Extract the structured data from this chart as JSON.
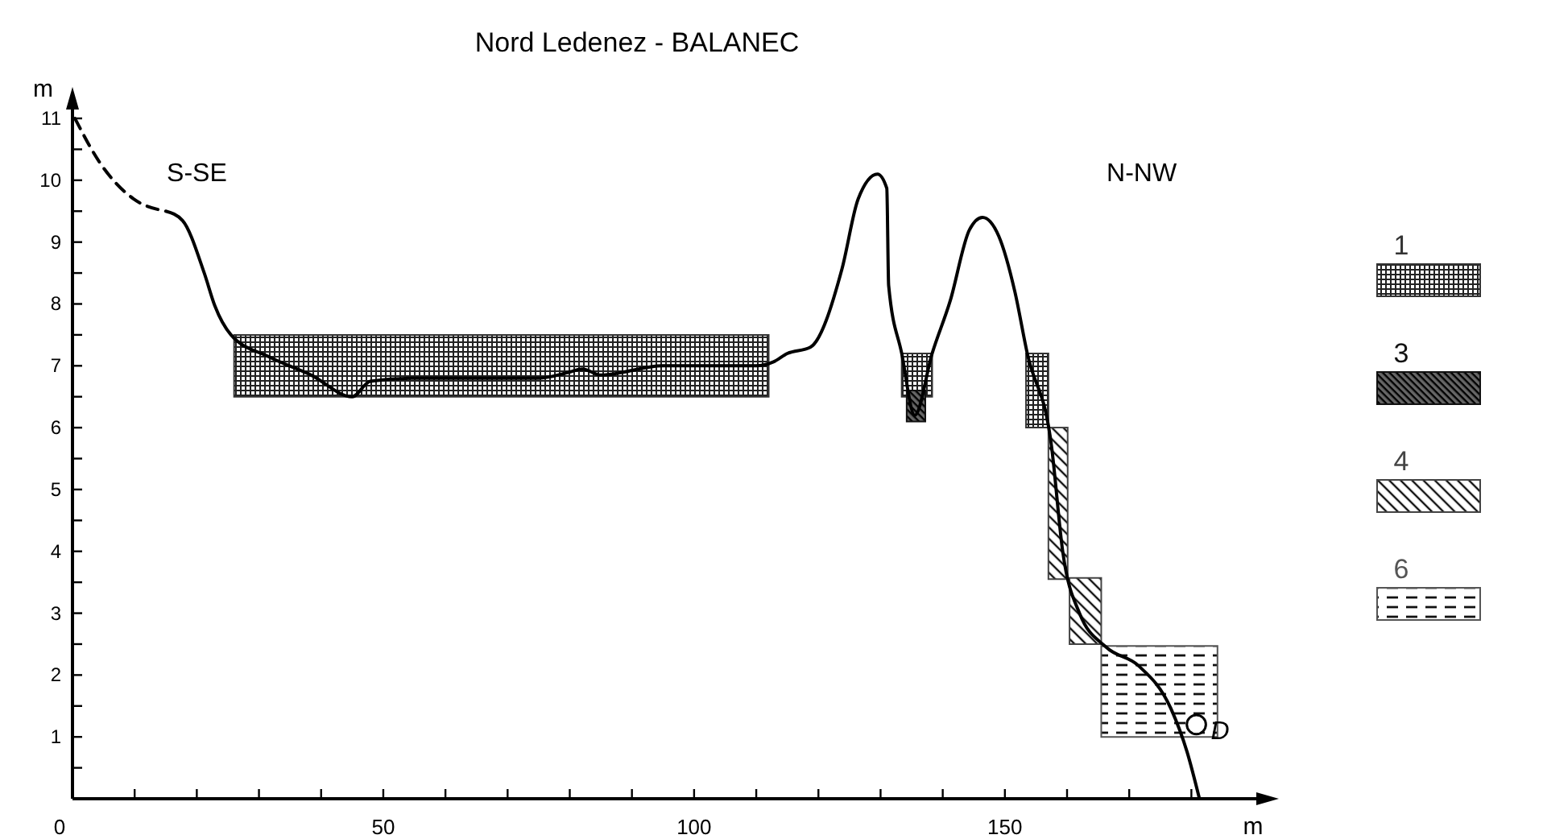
{
  "chart_data": {
    "type": "line",
    "title": "Nord Ledenez - BALANEC",
    "xlabel": "m",
    "ylabel": "m",
    "xlim": [
      0,
      192
    ],
    "ylim": [
      0,
      11.3
    ],
    "xticks": [
      0,
      {
        "value": 10,
        "label": null
      },
      {
        "value": 20,
        "label": null
      },
      {
        "value": 30,
        "label": null
      },
      {
        "value": 40,
        "label": null
      },
      50,
      {
        "value": 60,
        "label": null
      },
      {
        "value": 70,
        "label": null
      },
      {
        "value": 80,
        "label": null
      },
      {
        "value": 90,
        "label": null
      },
      100,
      {
        "value": 110,
        "label": null
      },
      {
        "value": 120,
        "label": null
      },
      {
        "value": 130,
        "label": null
      },
      {
        "value": 140,
        "label": null
      },
      150,
      {
        "value": 160,
        "label": null
      },
      {
        "value": 170,
        "label": null
      },
      {
        "value": 180,
        "label": null
      }
    ],
    "yticks": [
      {
        "value": 0.5,
        "label": null
      },
      1,
      {
        "value": 1.5,
        "label": null
      },
      2,
      {
        "value": 2.5,
        "label": null
      },
      3,
      {
        "value": 3.5,
        "label": null
      },
      4,
      {
        "value": 4.5,
        "label": null
      },
      5,
      {
        "value": 5.5,
        "label": null
      },
      6,
      {
        "value": 6.5,
        "label": null
      },
      7,
      {
        "value": 7.5,
        "label": null
      },
      8,
      {
        "value": 8.5,
        "label": null
      },
      9,
      {
        "value": 9.5,
        "label": null
      },
      10,
      {
        "value": 10.5,
        "label": null
      },
      11
    ],
    "grid": false,
    "legend": "right",
    "series": [
      {
        "type": "area",
        "name": "1",
        "color": "#333333",
        "x": [
          26,
          26,
          112,
          112
        ],
        "values": [
          6.5,
          7.5,
          7.5,
          6.5
        ]
      },
      {
        "type": "area",
        "color": "#333333",
        "x": [
          133.4,
          133.4,
          138.3,
          138.3
        ],
        "values": [
          6.5,
          7.2,
          7.2,
          6.5
        ]
      },
      {
        "type": "area",
        "name": "3",
        "color": "#111111",
        "x": [
          134.2,
          134.2,
          137.2,
          137.2
        ],
        "values": [
          6.1,
          6.6,
          6.6,
          6.1
        ]
      },
      {
        "type": "area",
        "color": "#333333",
        "x": [
          153.4,
          153.4,
          157,
          157
        ],
        "values": [
          6,
          7.2,
          7.2,
          6
        ]
      },
      {
        "type": "area",
        "name": "4",
        "color": "#444444",
        "x": [
          157,
          157,
          160.1,
          160.1
        ],
        "values": [
          3.55,
          6,
          6,
          3.55
        ]
      },
      {
        "type": "area",
        "color": "#444444",
        "x": [
          160.4,
          160.4,
          165.5,
          165.5
        ],
        "values": [
          2.5,
          3.57,
          3.57,
          2.5
        ]
      },
      {
        "type": "area",
        "name": "6",
        "color": "#555555",
        "x": [
          165.5,
          165.5,
          184.2,
          184.2
        ],
        "values": [
          1,
          2.47,
          2.47,
          1
        ]
      },
      {
        "color": "#000000",
        "line_style": "dashed",
        "x": [
          0.4,
          4.3,
          9.8,
          15
        ],
        "values": [
          11,
          10.3,
          9.7,
          9.5
        ]
      },
      {
        "color": "#000000",
        "line_style": "solid",
        "x": [
          15,
          17.7,
          21.2,
          22.9,
          25.5,
          31.5,
          38.4,
          45,
          47.9,
          55,
          65,
          75,
          80,
          82,
          85,
          95,
          105,
          110,
          112.7,
          115,
          118.7,
          123.8,
          126.4,
          129.5,
          131,
          131.3,
          133.4,
          135.5,
          138.3,
          141.2,
          144.3,
          146.4,
          149,
          151.6,
          153.6,
          157.5,
          159.3,
          162,
          166.3,
          171.5,
          176.7,
          179.3,
          181.3
        ],
        "values": [
          9.5,
          9.35,
          8.5,
          7.97,
          7.5,
          7.15,
          6.85,
          6.5,
          6.75,
          6.8,
          6.8,
          6.8,
          6.9,
          6.95,
          6.85,
          7,
          7,
          7,
          7.06,
          7.2,
          7.3,
          8.57,
          9.7,
          10.1,
          9.87,
          8.3,
          7.2,
          6.2,
          7.2,
          8.05,
          9.2,
          9.4,
          9.1,
          8.2,
          7.2,
          5.7,
          4,
          3,
          2.45,
          2.15,
          1.46,
          0.76,
          0
        ]
      },
      {
        "type": "scatter",
        "name": "D",
        "color": "#000000",
        "marker": "circle",
        "x": [
          180.8
        ],
        "values": [
          1.2
        ]
      }
    ],
    "annotations": [
      "S-SE",
      "N-NW"
    ]
  }
}
